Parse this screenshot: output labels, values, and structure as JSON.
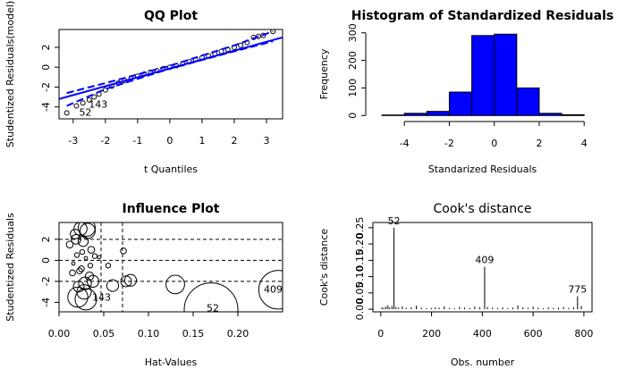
{
  "chart_data": [
    {
      "type": "scatter",
      "title": "QQ Plot",
      "xlabel": "t Quantiles",
      "ylabel": "Studentized Residuals(model)",
      "xlim": [
        -3.44,
        3.5
      ],
      "ylim": [
        -5.2,
        3.8
      ],
      "xticks": [
        -3,
        -2,
        -1,
        0,
        1,
        2,
        3
      ],
      "yticks": [
        -4,
        -2,
        0,
        2
      ],
      "color": "#000000",
      "x": [
        -3.2,
        -2.9,
        -2.7,
        -2.5,
        -2.35,
        -2.2,
        -2.0,
        -1.8,
        -1.6,
        -1.4,
        -1.2,
        -1.0,
        -0.8,
        -0.6,
        -0.4,
        -0.2,
        0,
        0.2,
        0.4,
        0.6,
        0.8,
        1.0,
        1.2,
        1.4,
        1.6,
        1.8,
        2.0,
        2.2,
        2.4,
        2.6,
        2.75,
        2.9,
        3.2
      ],
      "y": [
        -4.6,
        -3.9,
        -3.6,
        -3.3,
        -3.0,
        -2.7,
        -2.3,
        -1.9,
        -1.6,
        -1.35,
        -1.1,
        -0.9,
        -0.7,
        -0.5,
        -0.35,
        -0.15,
        0,
        0.15,
        0.35,
        0.55,
        0.75,
        0.95,
        1.15,
        1.35,
        1.6,
        1.8,
        2.0,
        2.2,
        2.5,
        3.0,
        3.1,
        3.2,
        3.6
      ],
      "lines": [
        {
          "x": [
            -3.44,
            3.5
          ],
          "y": [
            -3.2,
            3.0
          ],
          "color": "#0000ff",
          "dashed": false
        },
        {
          "x": [
            -3.2,
            -2,
            0,
            2,
            3.2
          ],
          "y": [
            -2.6,
            -1.6,
            0.15,
            2.2,
            3.6
          ],
          "color": "#0000ff",
          "dashed": true
        },
        {
          "x": [
            -3.2,
            -2,
            0,
            2,
            3.2
          ],
          "y": [
            -3.9,
            -2.2,
            -0.15,
            1.6,
            2.6
          ],
          "color": "#0000ff",
          "dashed": true
        }
      ],
      "annotations": [
        {
          "text": "52",
          "x": -2.9,
          "y": -4.6
        },
        {
          "text": "143",
          "x": -2.6,
          "y": -3.8
        }
      ]
    },
    {
      "type": "histogram",
      "title": "Histogram of Standardized Residuals",
      "xlabel": "Standarized Residuals",
      "ylabel": "Frequency",
      "bins": [
        -5,
        -4,
        -3,
        -2,
        -1,
        0,
        1,
        2,
        3,
        4
      ],
      "counts": [
        2,
        8,
        15,
        85,
        290,
        295,
        100,
        8,
        3
      ],
      "color": "#0000ff",
      "xlim": [
        -5.4,
        4.35
      ],
      "ylim": [
        -12,
        312
      ],
      "xticks": [
        -4,
        -2,
        0,
        2,
        4
      ],
      "yticks": [
        0,
        100,
        200,
        300
      ]
    },
    {
      "type": "bubble",
      "title": "Influence Plot",
      "xlabel": "Hat-Values",
      "ylabel": "Studentized Residuals",
      "xlim": [
        0,
        0.25
      ],
      "ylim": [
        -4.9,
        3.6
      ],
      "xticks": [
        {
          "value": 0,
          "label": "0.00"
        },
        {
          "value": 0.05,
          "label": "0.05"
        },
        {
          "value": 0.1,
          "label": "0.10"
        },
        {
          "value": 0.15,
          "label": "0.15"
        },
        {
          "value": 0.2,
          "label": "0.20"
        }
      ],
      "yticks": [
        -4,
        -2,
        0,
        2
      ],
      "color": "#000000",
      "x": [
        0.012,
        0.015,
        0.018,
        0.02,
        0.022,
        0.024,
        0.025,
        0.027,
        0.028,
        0.03,
        0.032,
        0.034,
        0.036,
        0.038,
        0.04,
        0.016,
        0.019,
        0.023,
        0.026,
        0.029,
        0.031,
        0.035,
        0.045,
        0.055,
        0.06,
        0.072,
        0.075,
        0.08,
        0.13,
        0.17,
        0.245,
        0.03,
        0.021
      ],
      "y": [
        1.5,
        -1.2,
        2.5,
        0.5,
        -2.5,
        3.0,
        -0.8,
        1.8,
        -3.0,
        0.2,
        2.8,
        -1.5,
        1.0,
        -2.0,
        0.4,
        -0.3,
        2.0,
        -1.0,
        0.8,
        -2.2,
        3.1,
        -0.5,
        0.3,
        -0.5,
        -2.4,
        0.9,
        -2.0,
        -1.9,
        -2.3,
        -4.7,
        -2.8,
        -3.7,
        -3.5
      ],
      "size": [
        0.004,
        0.003,
        0.008,
        0.002,
        0.01,
        0.015,
        0.003,
        0.009,
        0.018,
        0.001,
        0.02,
        0.006,
        0.004,
        0.012,
        0.002,
        0.001,
        0.008,
        0.003,
        0.002,
        0.014,
        0.025,
        0.002,
        0.001,
        0.002,
        0.012,
        0.003,
        0.01,
        0.012,
        0.03,
        0.25,
        0.13,
        0.04,
        0.035
      ],
      "hlines": [
        -2,
        0,
        2
      ],
      "vlines": [
        0.047,
        0.071
      ],
      "annotations": [
        {
          "text": "52",
          "x": 0.162,
          "y": -4.6
        },
        {
          "text": "409",
          "x": 0.226,
          "y": -2.8
        },
        {
          "text": "143",
          "x": 0.034,
          "y": -3.6
        }
      ]
    },
    {
      "type": "spike",
      "title": "Cook's distance",
      "xlabel": "Obs. number",
      "ylabel": "Cook's distance",
      "xlim": [
        -31,
        832
      ],
      "ylim": [
        -0.008,
        0.266
      ],
      "xticks": [
        0,
        200,
        400,
        600,
        800
      ],
      "yticks": [
        {
          "value": 0,
          "label": "0.00"
        },
        {
          "value": 0.05,
          "label": "0.05"
        },
        {
          "value": 0.1,
          "label": "0.10"
        },
        {
          "value": 0.15,
          "label": "0.15"
        },
        {
          "value": 0.2,
          "label": "0.20"
        },
        {
          "value": 0.25,
          "label": "0.25"
        }
      ],
      "color": "#000000",
      "x": [
        5,
        12,
        20,
        28,
        35,
        44,
        52,
        60,
        70,
        85,
        100,
        120,
        140,
        160,
        180,
        200,
        215,
        230,
        250,
        270,
        290,
        310,
        330,
        350,
        370,
        390,
        409,
        420,
        440,
        460,
        480,
        500,
        520,
        540,
        560,
        580,
        600,
        620,
        640,
        660,
        680,
        700,
        720,
        740,
        760,
        775,
        790
      ],
      "y": [
        0.006,
        0.004,
        0.008,
        0.012,
        0.005,
        0.01,
        0.25,
        0.007,
        0.005,
        0.009,
        0.004,
        0.006,
        0.011,
        0.005,
        0.003,
        0.004,
        0.006,
        0.005,
        0.009,
        0.004,
        0.003,
        0.007,
        0.005,
        0.004,
        0.008,
        0.006,
        0.13,
        0.007,
        0.005,
        0.004,
        0.006,
        0.003,
        0.005,
        0.012,
        0.006,
        0.004,
        0.008,
        0.005,
        0.003,
        0.006,
        0.004,
        0.005,
        0.007,
        0.004,
        0.006,
        0.04,
        0.01
      ],
      "annotations": [
        {
          "text": "52",
          "x": 52,
          "y": 0.25
        },
        {
          "text": "409",
          "x": 409,
          "y": 0.13
        },
        {
          "text": "775",
          "x": 775,
          "y": 0.04
        }
      ]
    }
  ]
}
